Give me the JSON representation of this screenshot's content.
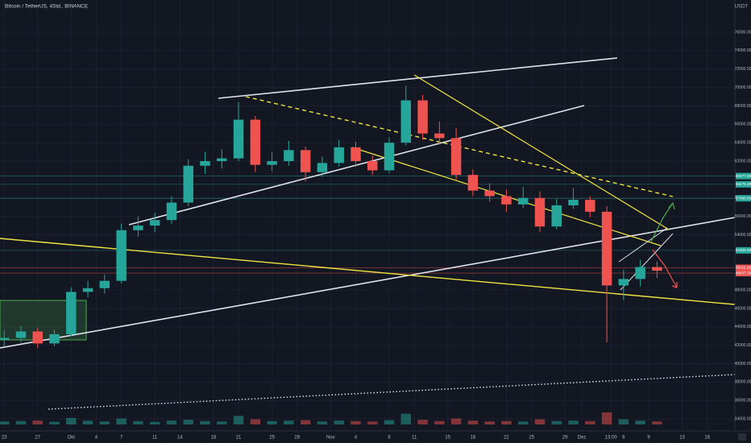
{
  "chart_data": {
    "type": "candlestick",
    "title": "Bitcoin / TetherUS, 4Std., BINANCE",
    "currency": "USDT",
    "up_color": "#26a69a",
    "down_color": "#ef5350",
    "xlim": [
      -0.5,
      87.3
    ],
    "ylim": [
      32700,
      79500
    ],
    "vlim": [
      0,
      60000
    ],
    "x": [
      0,
      2,
      4,
      6,
      8,
      10,
      12,
      14,
      16,
      18,
      20,
      22,
      24,
      26,
      28,
      30,
      32,
      34,
      36,
      38,
      40,
      42,
      44,
      46,
      48,
      50,
      52,
      54,
      56,
      58,
      60,
      62,
      64,
      66,
      68,
      70,
      72,
      74,
      76,
      78
    ],
    "ohlc": [
      [
        42600,
        43600,
        41900,
        42800
      ],
      [
        42800,
        44100,
        42300,
        43500
      ],
      [
        43500,
        43900,
        41700,
        42200
      ],
      [
        42200,
        43700,
        41900,
        43200
      ],
      [
        43200,
        48300,
        43000,
        47800
      ],
      [
        47800,
        49000,
        47200,
        48200
      ],
      [
        48200,
        49700,
        47600,
        49000
      ],
      [
        49000,
        55200,
        48700,
        54500
      ],
      [
        54500,
        56000,
        53800,
        55000
      ],
      [
        55000,
        56400,
        54300,
        55600
      ],
      [
        55600,
        58200,
        55200,
        57500
      ],
      [
        57500,
        62200,
        57100,
        61500
      ],
      [
        61500,
        63000,
        60600,
        62000
      ],
      [
        62000,
        63300,
        61200,
        62300
      ],
      [
        62300,
        68400,
        62000,
        66500
      ],
      [
        66500,
        66900,
        60800,
        61600
      ],
      [
        61600,
        63000,
        60900,
        62000
      ],
      [
        62000,
        64200,
        61500,
        63200
      ],
      [
        63200,
        63600,
        59800,
        60800
      ],
      [
        60800,
        62500,
        60300,
        61800
      ],
      [
        61800,
        64300,
        61400,
        63500
      ],
      [
        63500,
        64100,
        61400,
        62000
      ],
      [
        62000,
        62600,
        60500,
        61000
      ],
      [
        61000,
        64600,
        60700,
        64000
      ],
      [
        64000,
        70200,
        63700,
        68600
      ],
      [
        68600,
        69200,
        64300,
        65000
      ],
      [
        65000,
        66300,
        63800,
        64500
      ],
      [
        64500,
        65600,
        59900,
        60500
      ],
      [
        60500,
        61100,
        58200,
        58800
      ],
      [
        58800,
        59600,
        57600,
        58200
      ],
      [
        58200,
        58900,
        56500,
        57300
      ],
      [
        57300,
        59200,
        56900,
        58000
      ],
      [
        58000,
        58700,
        54300,
        54900
      ],
      [
        54900,
        57900,
        54600,
        57200
      ],
      [
        57200,
        59100,
        56800,
        57800
      ],
      [
        57800,
        58200,
        55900,
        56500
      ],
      [
        56500,
        57100,
        42300,
        48500
      ],
      [
        48500,
        50200,
        46900,
        49200
      ],
      [
        49200,
        51300,
        48400,
        50500
      ],
      [
        50500,
        51100,
        49300,
        50100
      ]
    ],
    "volume": [
      7000,
      8000,
      9000,
      6500,
      15000,
      9000,
      7000,
      14000,
      8000,
      6000,
      9000,
      11000,
      8000,
      7000,
      20000,
      12000,
      8000,
      9000,
      10000,
      7000,
      9000,
      8000,
      7000,
      10000,
      25000,
      11000,
      8000,
      14000,
      9000,
      7000,
      8000,
      7000,
      12000,
      8000,
      9000,
      8000,
      28000,
      12000,
      9000,
      7000
    ],
    "xticks": [
      {
        "value": 0,
        "label": "23"
      },
      {
        "value": 4,
        "label": "27"
      },
      {
        "value": 8,
        "label": "Okt"
      },
      {
        "value": 11,
        "label": "4"
      },
      {
        "value": 14,
        "label": "7"
      },
      {
        "value": 18,
        "label": "11"
      },
      {
        "value": 21,
        "label": "14"
      },
      {
        "value": 25,
        "label": "18"
      },
      {
        "value": 28,
        "label": "21"
      },
      {
        "value": 32,
        "label": "25"
      },
      {
        "value": 35,
        "label": "28"
      },
      {
        "value": 39,
        "label": "Nov"
      },
      {
        "value": 42,
        "label": "4"
      },
      {
        "value": 46,
        "label": "8"
      },
      {
        "value": 49,
        "label": "11"
      },
      {
        "value": 53,
        "label": "15"
      },
      {
        "value": 56,
        "label": "18"
      },
      {
        "value": 60,
        "label": "22"
      },
      {
        "value": 63,
        "label": "25"
      },
      {
        "value": 67,
        "label": "29"
      },
      {
        "value": 69,
        "label": "Dez"
      },
      {
        "value": 72.5,
        "label": "13:00"
      },
      {
        "value": 74,
        "label": "6"
      },
      {
        "value": 77,
        "label": "9"
      },
      {
        "value": 81,
        "label": "13"
      },
      {
        "value": 84,
        "label": "16"
      }
    ],
    "yticks": [
      {
        "value": 76000,
        "label": "76000.00"
      },
      {
        "value": 74000,
        "label": "74000.00"
      },
      {
        "value": 72000,
        "label": "72000.00"
      },
      {
        "value": 70000,
        "label": "70000.00"
      },
      {
        "value": 68000,
        "label": "68000.00"
      },
      {
        "value": 66000,
        "label": "66000.00"
      },
      {
        "value": 64000,
        "label": "64000.00"
      },
      {
        "value": 62000,
        "label": "62000.00"
      },
      {
        "value": 58000,
        "label": "58000.00"
      },
      {
        "value": 56000,
        "label": "56000.00"
      },
      {
        "value": 54000,
        "label": "54000.00"
      },
      {
        "value": 48000,
        "label": "48000.00"
      },
      {
        "value": 46000,
        "label": "46000.00"
      },
      {
        "value": 44000,
        "label": "44000.00"
      },
      {
        "value": 42000,
        "label": "42000.00"
      },
      {
        "value": 40000,
        "label": "40000.00"
      },
      {
        "value": 38000,
        "label": "38000.00"
      },
      {
        "value": 36000,
        "label": "36000.00"
      },
      {
        "value": 34000,
        "label": "34000.00"
      }
    ],
    "price_tags": [
      {
        "value": 60377,
        "label": "60377.00",
        "color": "#26a69a"
      },
      {
        "value": 59478.29,
        "label": "59478.29",
        "color": "#26a69a"
      },
      {
        "value": 57966,
        "label": "57966.00",
        "color": "#26a69a"
      },
      {
        "value": 52306,
        "label": "52306.00",
        "color": "#26a69a"
      },
      {
        "value": 50411.29,
        "label": "50411.29",
        "color": "#ef5350"
      },
      {
        "value": 49837.79,
        "label": "49837.79",
        "color": "#ef5350"
      }
    ]
  }
}
